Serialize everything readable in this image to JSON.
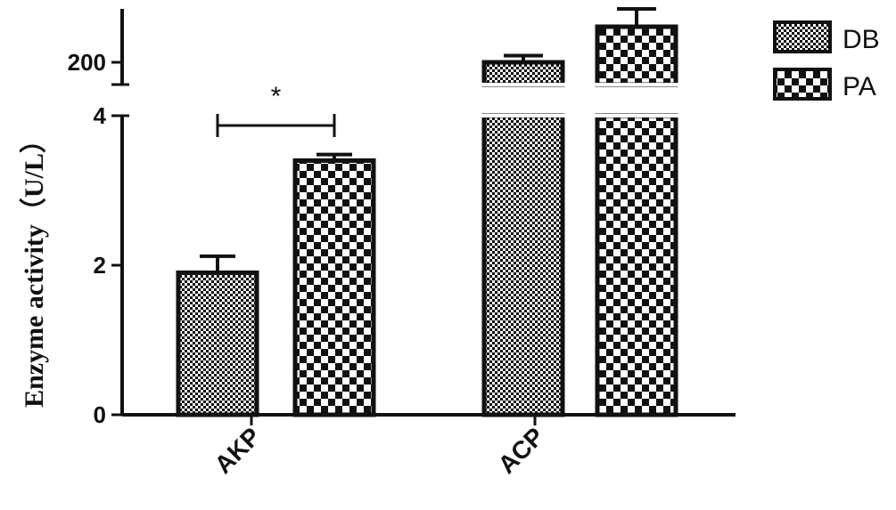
{
  "chart_data": {
    "type": "bar",
    "ylabel": "Enzyme activity（U/L）",
    "categories": [
      "AKP",
      "ACP"
    ],
    "series": [
      {
        "name": "DB",
        "values": [
          1.9,
          200
        ],
        "errors": [
          0.22,
          1.5
        ],
        "pattern": "fine-checker"
      },
      {
        "name": "PA",
        "values": [
          3.4,
          208
        ],
        "errors": [
          0.08,
          4.0
        ],
        "pattern": "coarse-checker"
      }
    ],
    "axis_segments": [
      {
        "range": [
          0,
          4
        ],
        "ticks": [
          "0",
          "2",
          "4"
        ]
      },
      {
        "range": [
          195,
          212
        ],
        "ticks": [
          "200"
        ]
      }
    ],
    "legend": {
      "position": "top-right",
      "items": [
        "DB",
        "PA"
      ]
    },
    "annotations": [
      {
        "text": "*",
        "between": [
          "AKP/DB",
          "AKP/PA"
        ]
      }
    ],
    "grid": false
  }
}
